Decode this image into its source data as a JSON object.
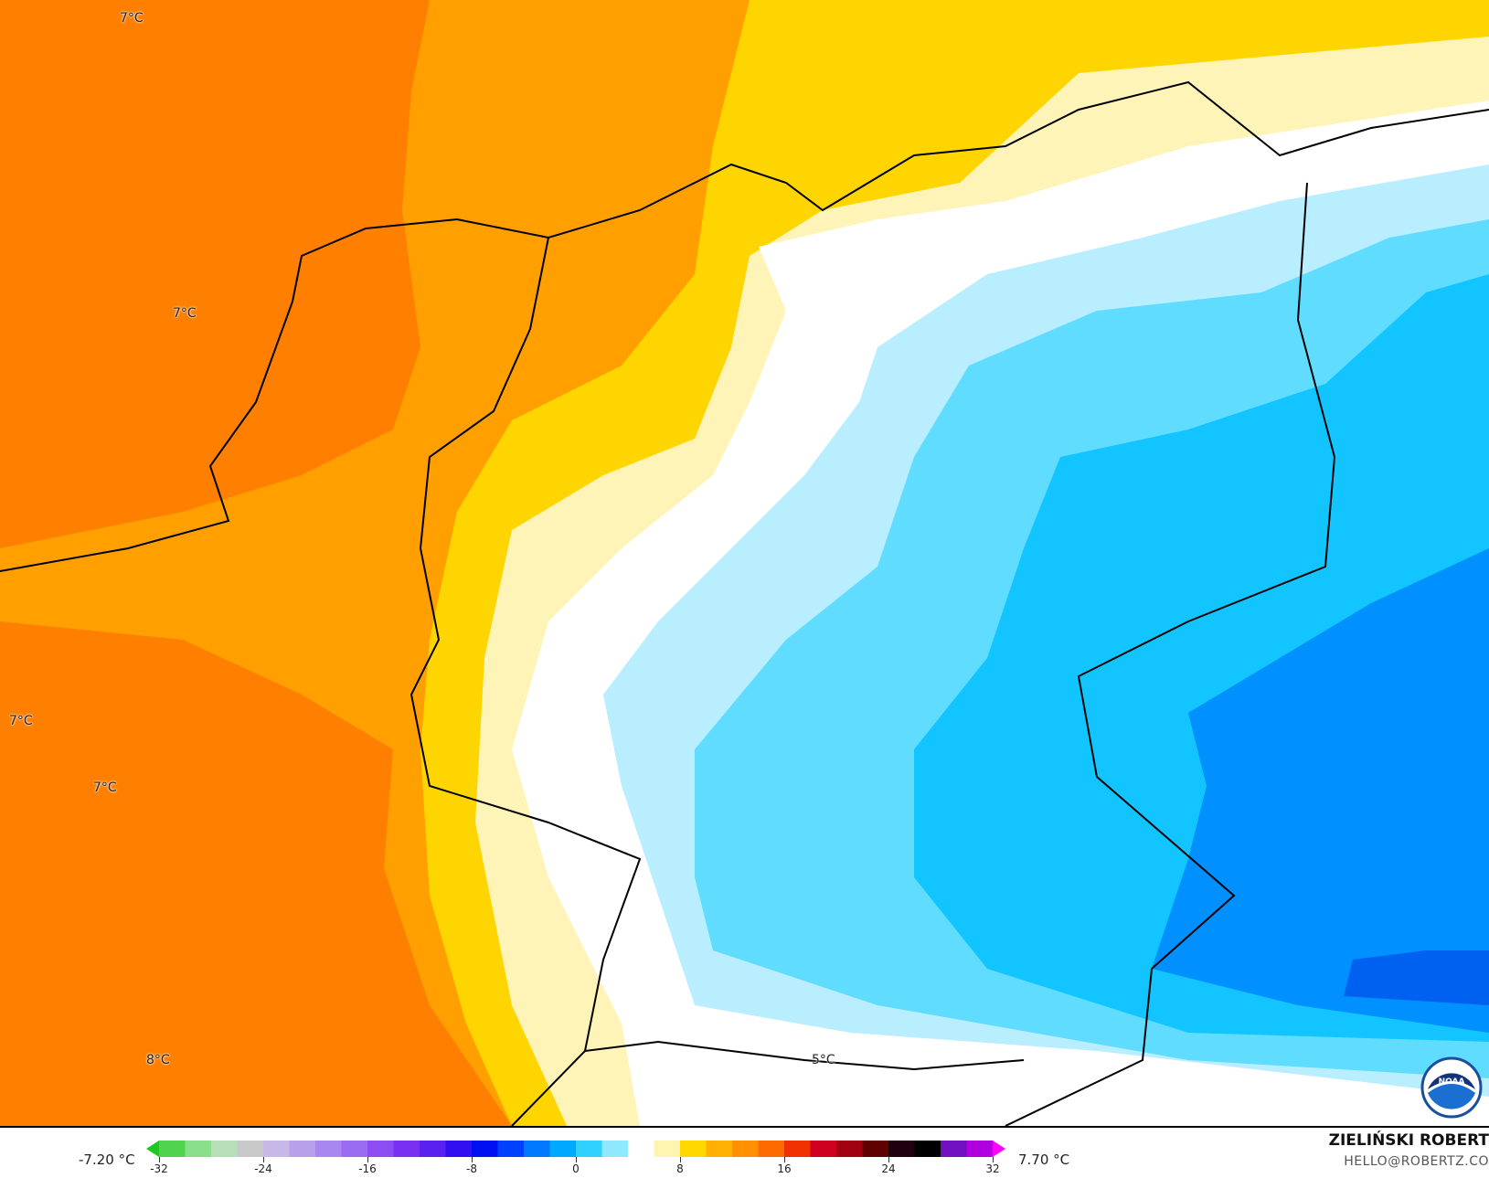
{
  "map": {
    "labels": [
      {
        "text": "7°C"
      },
      {
        "text": "7°C"
      },
      {
        "text": "7°C"
      },
      {
        "text": "7°C"
      },
      {
        "text": "8°C"
      },
      {
        "text": "5°C"
      }
    ],
    "logo": "NOAA",
    "colors": {
      "orange_dark": "#ff8000",
      "orange": "#ffa000",
      "yellow": "#ffd500",
      "pale_yellow": "#fff4b8",
      "white": "#ffffff",
      "light_blue": "#b8eeff",
      "cyan": "#60dcff",
      "blue": "#12c4ff",
      "deep_blue": "#0090ff"
    }
  },
  "legend": {
    "min_value": "-7.20 °C",
    "max_value": "7.70 °C",
    "ticks": [
      "-32",
      "-24",
      "-16",
      "-8",
      "0",
      "8",
      "16",
      "24",
      "32"
    ],
    "range": [
      -32,
      32
    ],
    "bin_colors": [
      "#1ec81e",
      "#50d450",
      "#8ae08a",
      "#b8e0b8",
      "#c8c8c8",
      "#c8b8e8",
      "#b8a0ea",
      "#a888f0",
      "#9a6cf2",
      "#8c4ef2",
      "#7a30f2",
      "#5a20f0",
      "#3010f0",
      "#0010f0",
      "#0040ff",
      "#0078ff",
      "#00a8ff",
      "#30d0ff",
      "#90e8ff",
      "#ffffff",
      "#fff4b0",
      "#ffd800",
      "#ffb000",
      "#ff9000",
      "#ff6a00",
      "#f03000",
      "#d00020",
      "#a00010",
      "#600000",
      "#200010",
      "#000000",
      "#7010c0",
      "#b000e0",
      "#ff00ff"
    ],
    "author": "ZIELIŃSKI ROBERT",
    "email": "HELLO@ROBERTZ.CO"
  }
}
